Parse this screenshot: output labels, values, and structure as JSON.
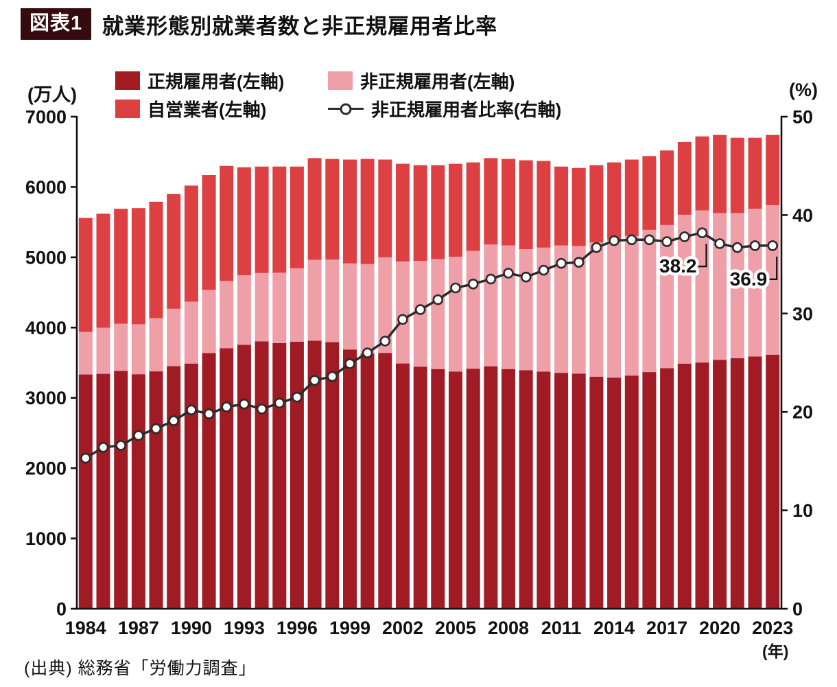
{
  "header": {
    "badge": "図表1",
    "title": "就業形態別就業者数と非正規雇用者比率"
  },
  "source": "(出典) 総務省「労働力調査」",
  "legend": {
    "items": [
      {
        "key": "regular",
        "label": "正規雇用者(左軸)",
        "swatch": "box",
        "color": "#a01b24"
      },
      {
        "key": "nonregular",
        "label": "非正規雇用者(左軸)",
        "swatch": "box",
        "color": "#ee9fa8"
      },
      {
        "key": "selfemployed",
        "label": "自営業者(左軸)",
        "swatch": "box",
        "color": "#dd4042"
      },
      {
        "key": "ratio",
        "label": "非正規雇用者比率(右軸)",
        "swatch": "line",
        "color": "#2b2b2b"
      }
    ]
  },
  "styles": {
    "axis_color": "#111111",
    "text_color": "#111111",
    "line_color": "#2b2b2b",
    "marker_fill": "#ffffff"
  },
  "chart_data": {
    "type": "bar",
    "subtype": "stacked-bars-with-line",
    "title": "就業形態別就業者数と非正規雇用者比率",
    "x": [
      1984,
      1985,
      1986,
      1987,
      1988,
      1989,
      1990,
      1991,
      1992,
      1993,
      1994,
      1995,
      1996,
      1997,
      1998,
      1999,
      2000,
      2001,
      2002,
      2003,
      2004,
      2005,
      2006,
      2007,
      2008,
      2009,
      2010,
      2011,
      2012,
      2013,
      2014,
      2015,
      2016,
      2017,
      2018,
      2019,
      2020,
      2021,
      2022,
      2023
    ],
    "x_tick_labels": [
      1984,
      1987,
      1990,
      1993,
      1996,
      1999,
      2002,
      2005,
      2008,
      2011,
      2014,
      2017,
      2020,
      2023
    ],
    "x_suffix": "(年)",
    "left_axis": {
      "unit": "(万人)",
      "min": 0,
      "max": 7000,
      "step": 1000,
      "ticks": [
        0,
        1000,
        2000,
        3000,
        4000,
        5000,
        6000,
        7000
      ]
    },
    "right_axis": {
      "unit": "(%)",
      "min": 0,
      "max": 50,
      "step": 10,
      "ticks": [
        0,
        10,
        20,
        30,
        40,
        50
      ]
    },
    "grid": false,
    "legend_position": "top",
    "series": [
      {
        "name": "正規雇用者",
        "axis": "left",
        "type": "bar",
        "stack_order": 1,
        "color": "#a01b24",
        "values": [
          3333,
          3343,
          3383,
          3337,
          3377,
          3452,
          3488,
          3639,
          3705,
          3756,
          3805,
          3779,
          3800,
          3812,
          3794,
          3688,
          3630,
          3640,
          3489,
          3444,
          3410,
          3375,
          3415,
          3449,
          3410,
          3395,
          3374,
          3355,
          3345,
          3302,
          3288,
          3317,
          3367,
          3423,
          3485,
          3503,
          3539,
          3565,
          3588,
          3615
        ]
      },
      {
        "name": "非正規雇用者",
        "axis": "left",
        "type": "bar",
        "stack_order": 2,
        "color": "#ee9fa8",
        "values": [
          604,
          655,
          673,
          711,
          755,
          817,
          881,
          897,
          958,
          986,
          971,
          1001,
          1043,
          1152,
          1173,
          1225,
          1273,
          1360,
          1451,
          1504,
          1564,
          1633,
          1677,
          1732,
          1760,
          1721,
          1763,
          1812,
          1816,
          1910,
          1967,
          1986,
          2023,
          2036,
          2120,
          2165,
          2090,
          2064,
          2101,
          2124
        ]
      },
      {
        "name": "自営業者",
        "axis": "left",
        "type": "bar",
        "stack_order": 3,
        "color": "#dd4042",
        "values": [
          1623,
          1622,
          1634,
          1652,
          1658,
          1631,
          1651,
          1634,
          1637,
          1538,
          1514,
          1510,
          1447,
          1446,
          1433,
          1477,
          1497,
          1390,
          1390,
          1362,
          1336,
          1322,
          1258,
          1229,
          1230,
          1264,
          1233,
          1123,
          1109,
          1098,
          1095,
          1087,
          1050,
          1061,
          1035,
          1052,
          1111,
          1071,
          1011,
          1001
        ]
      },
      {
        "name": "非正規雇用者比率",
        "axis": "right",
        "type": "line",
        "color": "#2b2b2b",
        "values": [
          15.3,
          16.4,
          16.6,
          17.6,
          18.3,
          19.1,
          20.2,
          19.8,
          20.5,
          20.8,
          20.3,
          20.9,
          21.5,
          23.2,
          23.6,
          24.9,
          26.0,
          27.2,
          29.4,
          30.4,
          31.4,
          32.6,
          33.0,
          33.5,
          34.1,
          33.7,
          34.4,
          35.1,
          35.2,
          36.7,
          37.4,
          37.5,
          37.5,
          37.3,
          37.8,
          38.2,
          37.1,
          36.7,
          36.9,
          36.9
        ]
      }
    ],
    "annotations": [
      {
        "text": "38.2",
        "year": 2019
      },
      {
        "text": "36.9",
        "year": 2023
      }
    ]
  }
}
